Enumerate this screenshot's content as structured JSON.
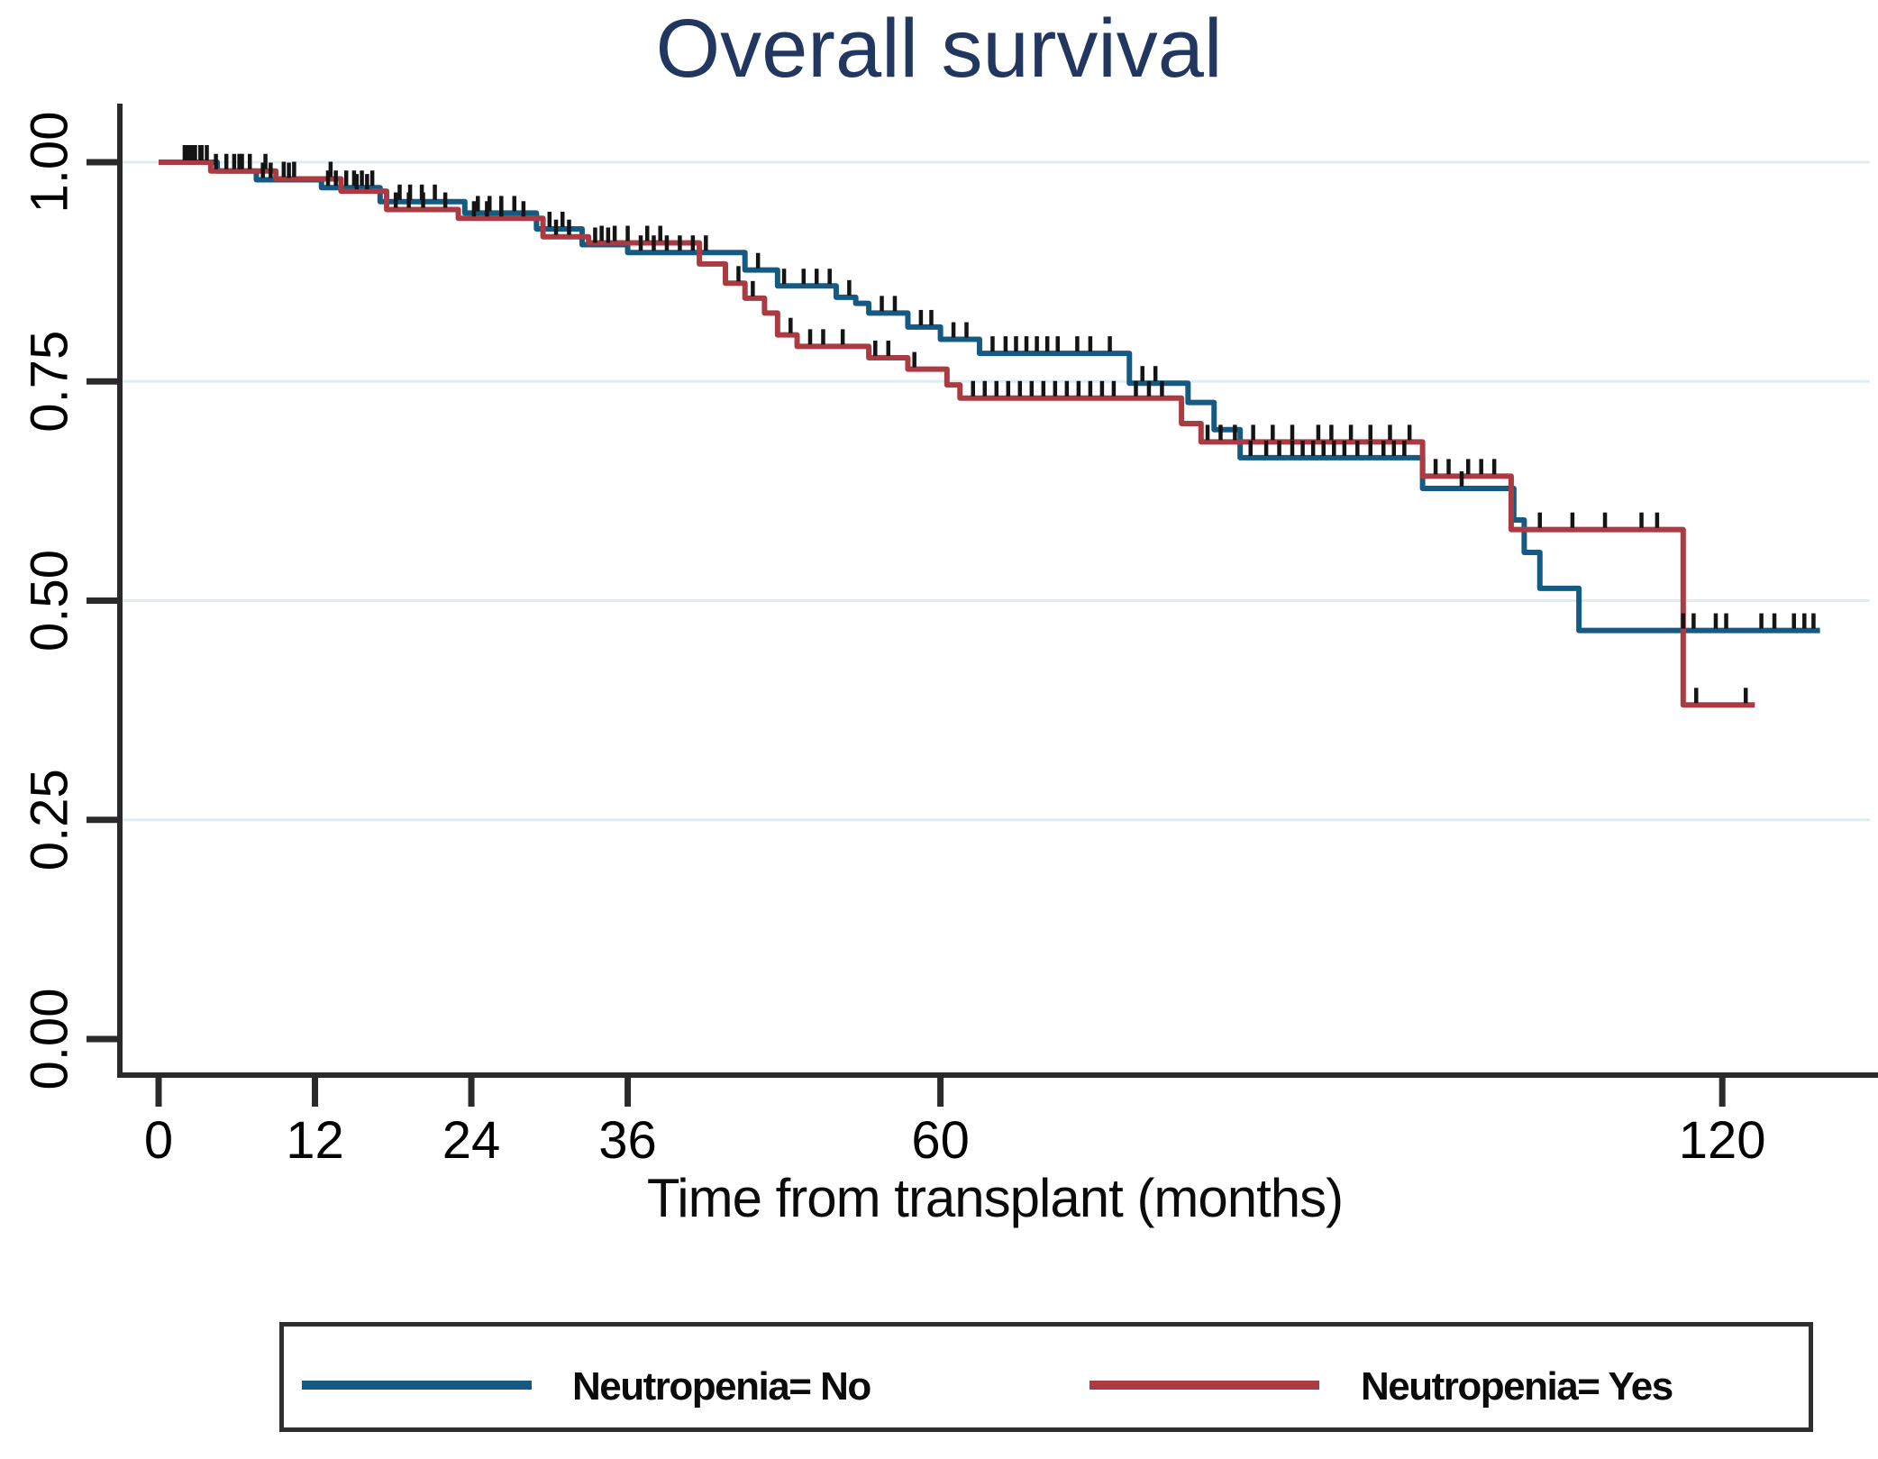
{
  "title": "Overall survival",
  "x_axis_label": "Time from transplant (months)",
  "legend": {
    "items": [
      {
        "label": "Neutropenia= No"
      },
      {
        "label": "Neutropenia= Yes"
      }
    ]
  },
  "chart_data": {
    "type": "line",
    "subtype": "kaplan-meier-step-survival",
    "title": "Overall survival",
    "xlabel": "Time from transplant (months)",
    "ylabel": "",
    "xlim": [
      0,
      130
    ],
    "ylim": [
      0.0,
      1.0
    ],
    "xticks": [
      0,
      12,
      24,
      36,
      60,
      120
    ],
    "yticks": [
      "0.00",
      "0.25",
      "0.50",
      "0.75",
      "1.00"
    ],
    "ytick_values": [
      0,
      0.25,
      0.5,
      0.75,
      1.0
    ],
    "grid": "horizontal",
    "gridline_color": "#ddeef0",
    "axis_color": "#2a2a2a",
    "censor_color": "#141414",
    "title_color": "#21375f",
    "legend_position": "bottom-box",
    "series": [
      {
        "name": "Neutropenia= No",
        "color": "#155a82",
        "steps": [
          [
            0,
            1.0
          ],
          [
            4.5,
            0.99
          ],
          [
            7.5,
            0.98
          ],
          [
            12.5,
            0.971
          ],
          [
            17,
            0.955
          ],
          [
            23.5,
            0.942
          ],
          [
            29,
            0.924
          ],
          [
            32.5,
            0.906
          ],
          [
            36,
            0.897
          ],
          [
            45,
            0.877
          ],
          [
            47.5,
            0.859
          ],
          [
            52,
            0.846
          ],
          [
            53.5,
            0.839
          ],
          [
            54.5,
            0.828
          ],
          [
            57.5,
            0.812
          ],
          [
            60,
            0.798
          ],
          [
            63,
            0.782
          ],
          [
            74.5,
            0.748
          ],
          [
            79,
            0.726
          ],
          [
            81,
            0.695
          ],
          [
            83,
            0.663
          ],
          [
            97,
            0.628
          ],
          [
            104,
            0.592
          ],
          [
            104.8,
            0.555
          ],
          [
            106,
            0.514
          ],
          [
            109,
            0.466
          ]
        ],
        "end_month": 127.5,
        "censors": [
          2.3,
          2.8,
          3.2,
          3.7,
          5.2,
          5.8,
          6.4,
          8,
          8.6,
          10,
          13,
          13.6,
          14.4,
          15,
          15.6,
          16.4,
          18.5,
          19.3,
          20.2,
          21.2,
          24.5,
          25.4,
          26.3,
          27.3,
          30,
          31,
          33.5,
          34.5,
          37,
          38,
          39,
          40,
          41,
          42,
          46,
          48,
          49.5,
          50.5,
          51.5,
          53,
          55.5,
          56.5,
          58.5,
          59.3,
          61,
          62,
          64,
          65,
          65.8,
          66.6,
          67.4,
          68.2,
          69,
          70.5,
          71.5,
          73,
          75.5,
          76.5,
          83.8,
          85,
          86,
          87,
          87.8,
          88.6,
          89.4,
          90.2,
          91,
          92,
          93,
          94,
          94.8,
          95.6,
          100,
          117,
          117.8,
          119.5,
          120.3,
          123,
          124,
          125.5,
          126.3,
          127
        ]
      },
      {
        "name": "Neutropenia= Yes",
        "color": "#ab3b43",
        "steps": [
          [
            0,
            1.0
          ],
          [
            4,
            0.99
          ],
          [
            9,
            0.981
          ],
          [
            14,
            0.967
          ],
          [
            17.5,
            0.946
          ],
          [
            23,
            0.936
          ],
          [
            29.5,
            0.915
          ],
          [
            33,
            0.908
          ],
          [
            41.5,
            0.884
          ],
          [
            43.5,
            0.862
          ],
          [
            45,
            0.845
          ],
          [
            46.5,
            0.828
          ],
          [
            47.5,
            0.803
          ],
          [
            49,
            0.79
          ],
          [
            54.5,
            0.777
          ],
          [
            57.5,
            0.764
          ],
          [
            60.5,
            0.746
          ],
          [
            61.5,
            0.731
          ],
          [
            78.5,
            0.702
          ],
          [
            80,
            0.681
          ],
          [
            97,
            0.642
          ],
          [
            103.8,
            0.581
          ],
          [
            117,
            0.381
          ]
        ],
        "end_month": 122.5,
        "censors": [
          2,
          2.6,
          3.3,
          4.4,
          6.2,
          7,
          8.2,
          9.6,
          10.4,
          13.2,
          15.2,
          16,
          18.2,
          19.2,
          20.3,
          22,
          24.2,
          25.2,
          26.3,
          28,
          30.5,
          31.5,
          34,
          35,
          36,
          37.5,
          38.5,
          44.5,
          45.6,
          48.5,
          50,
          51,
          52.5,
          55,
          56,
          58,
          62.5,
          63.4,
          64.3,
          65.2,
          66.1,
          67,
          67.9,
          68.8,
          69.7,
          70.6,
          71.5,
          72.4,
          73.3,
          75,
          76,
          77,
          80.5,
          81.5,
          82.6,
          84,
          85.5,
          87,
          89,
          90,
          91.5,
          93,
          94.5,
          96,
          98,
          99,
          100.5,
          101.5,
          102.5,
          106,
          108.5,
          111,
          113.8,
          115,
          118,
          121.8
        ]
      }
    ]
  }
}
